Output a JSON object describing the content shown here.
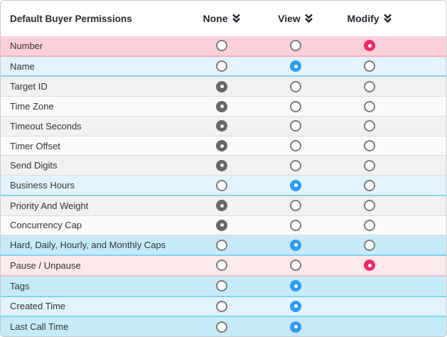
{
  "header": {
    "title": "Default Buyer Permissions",
    "columns": [
      {
        "id": "none",
        "label": "None",
        "icon": "double-chevron-down-icon"
      },
      {
        "id": "view",
        "label": "View",
        "icon": "double-chevron-down-icon"
      },
      {
        "id": "modify",
        "label": "Modify",
        "icon": "double-chevron-down-icon"
      }
    ]
  },
  "colors": {
    "radio_checked_none": "#676767",
    "radio_checked_view": "#2e9cf5",
    "radio_checked_modify": "#ee2a6d",
    "row_pink_dark": "#fcd0da",
    "row_pink_light": "#fde9ec",
    "row_blue_dark": "#c7eafa",
    "row_blue_light": "#e1f3fc",
    "row_gray": "#f1f1f1",
    "row_white": "#fafafa"
  },
  "rows": [
    {
      "label": "Number",
      "variant": "pink-dark",
      "none": "unchecked",
      "view": "unchecked",
      "modify": "checked"
    },
    {
      "label": "Name",
      "variant": "blue-light",
      "none": "unchecked",
      "view": "checked",
      "modify": "unchecked"
    },
    {
      "label": "Target ID",
      "variant": "gray",
      "none": "checked",
      "view": "unchecked",
      "modify": "unchecked"
    },
    {
      "label": "Time Zone",
      "variant": "white",
      "none": "checked",
      "view": "unchecked",
      "modify": "unchecked"
    },
    {
      "label": "Timeout Seconds",
      "variant": "gray",
      "none": "checked",
      "view": "unchecked",
      "modify": "unchecked"
    },
    {
      "label": "Timer Offset",
      "variant": "white",
      "none": "checked",
      "view": "unchecked",
      "modify": "unchecked"
    },
    {
      "label": "Send Digits",
      "variant": "gray",
      "none": "checked",
      "view": "unchecked",
      "modify": "unchecked"
    },
    {
      "label": "Business Hours",
      "variant": "blue-light",
      "none": "unchecked",
      "view": "checked",
      "modify": "unchecked"
    },
    {
      "label": "Priority And Weight",
      "variant": "gray",
      "none": "checked",
      "view": "unchecked",
      "modify": "unchecked"
    },
    {
      "label": "Concurrency Cap",
      "variant": "white",
      "none": "checked",
      "view": "unchecked",
      "modify": "unchecked"
    },
    {
      "label": "Hard, Daily, Hourly, and Monthly Caps",
      "variant": "blue-dark",
      "none": "unchecked",
      "view": "checked",
      "modify": "unchecked"
    },
    {
      "label": "Pause / Unpause",
      "variant": "pink-light",
      "none": "unchecked",
      "view": "unchecked",
      "modify": "checked"
    },
    {
      "label": "Tags",
      "variant": "blue-dark",
      "none": "unchecked",
      "view": "checked",
      "modify": "absent"
    },
    {
      "label": "Created Time",
      "variant": "blue-light",
      "none": "unchecked",
      "view": "checked",
      "modify": "absent"
    },
    {
      "label": "Last Call Time",
      "variant": "blue-dark",
      "none": "unchecked",
      "view": "checked",
      "modify": "absent"
    }
  ]
}
